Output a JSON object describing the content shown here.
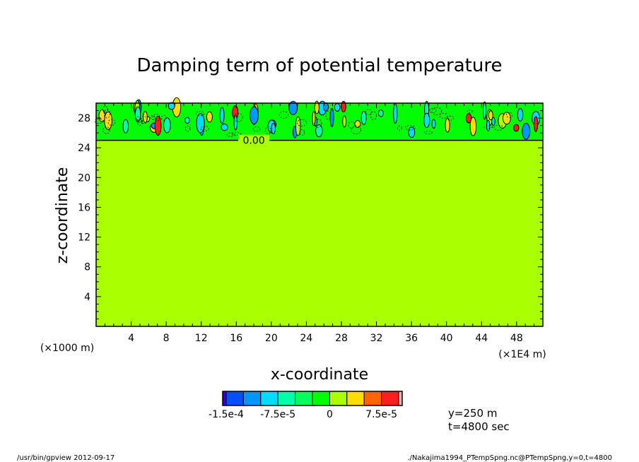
{
  "chart_data": {
    "type": "heatmap",
    "title": "Damping term of potential temperature",
    "xlabel": "x-coordinate",
    "ylabel": "z-coordinate",
    "x_unit_left": "(×1000 m)",
    "x_unit_right": "(×1E4 m)",
    "xlim": [
      0,
      51
    ],
    "ylim": [
      0,
      30
    ],
    "x_ticks": [
      4,
      8,
      12,
      16,
      20,
      24,
      28,
      32,
      36,
      40,
      44,
      48
    ],
    "y_ticks": [
      4,
      8,
      12,
      16,
      20,
      24,
      28
    ],
    "contour_label": "0.00",
    "zero_contour_z": 25,
    "damping_layer": {
      "z_start": 25,
      "z_end": 30
    },
    "colorbar": {
      "levels": [
        -0.00015,
        -0.000125,
        -0.0001,
        -7.5e-05,
        -5e-05,
        -2.5e-05,
        0,
        2.5e-05,
        5e-05,
        7.5e-05,
        0.0001,
        0.000125
      ],
      "colors": [
        "#3c00c8",
        "#0050ff",
        "#0096ff",
        "#00dcff",
        "#00ffaa",
        "#00ff5a",
        "#00ff00",
        "#aaff00",
        "#ffdc00",
        "#ff6400",
        "#ff1e1e",
        "#ffb4b4"
      ],
      "tick_labels": [
        "-1.5e-4",
        "-7.5e-5",
        "0",
        "7.5e-5"
      ]
    },
    "background_value_color": "#aaff00",
    "upper_layer_color": "#00ff00"
  },
  "info": {
    "y_text": "y=250 m",
    "t_text": "t=4800 sec"
  },
  "footer": {
    "left": "/usr/bin/gpview   2012-09-17",
    "right": "./Nakajima1994_PTempSpng.nc@PTempSpng,y=0,t=4800"
  }
}
